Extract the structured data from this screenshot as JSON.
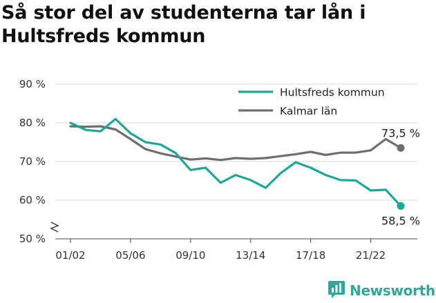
{
  "title": "Så stor del av studenterna tar lån i Hultsfreds kommun",
  "brand": {
    "name": "Newsworthy",
    "logo_icon": "bar-chart-chat-bubble-icon",
    "color": "#2fa79a"
  },
  "chart_data": {
    "type": "line",
    "title": "Så stor del av studenterna tar lån i Hultsfreds kommun",
    "xlabel": "",
    "ylabel": "",
    "ylim": [
      50,
      90
    ],
    "y_ticks": [
      {
        "value": 50,
        "label": "50 %"
      },
      {
        "value": 60,
        "label": "60 %"
      },
      {
        "value": 70,
        "label": "70 %"
      },
      {
        "value": 80,
        "label": "80 %"
      },
      {
        "value": 90,
        "label": "90 %"
      }
    ],
    "y_axis_break": true,
    "grid": true,
    "legend": "top-right",
    "x": [
      "01/02",
      "02/03",
      "03/04",
      "04/05",
      "05/06",
      "06/07",
      "07/08",
      "08/09",
      "09/10",
      "10/11",
      "11/12",
      "12/13",
      "13/14",
      "14/15",
      "15/16",
      "16/17",
      "17/18",
      "18/19",
      "19/20",
      "20/21",
      "21/22",
      "22/23",
      "23/24"
    ],
    "x_tick_labels": [
      "01/02",
      "05/06",
      "09/10",
      "13/14",
      "17/18",
      "21/22"
    ],
    "series": [
      {
        "name": "Hultsfreds kommun",
        "color": "#1aa898",
        "values": [
          80.0,
          78.2,
          77.8,
          81.0,
          77.3,
          75.0,
          74.4,
          72.2,
          67.8,
          68.4,
          64.5,
          66.5,
          65.2,
          63.2,
          67.0,
          69.8,
          68.4,
          66.5,
          65.2,
          65.1,
          62.5,
          62.7,
          58.5
        ],
        "end_label": "58,5 %"
      },
      {
        "name": "Kalmar län",
        "color": "#6e6d71",
        "values": [
          79.1,
          79.0,
          79.1,
          78.3,
          75.8,
          73.2,
          72.1,
          71.3,
          70.5,
          70.8,
          70.4,
          70.9,
          70.7,
          70.9,
          71.4,
          71.9,
          72.5,
          71.7,
          72.3,
          72.3,
          72.9,
          75.8,
          73.5
        ],
        "end_label": "73,5 %"
      }
    ]
  }
}
